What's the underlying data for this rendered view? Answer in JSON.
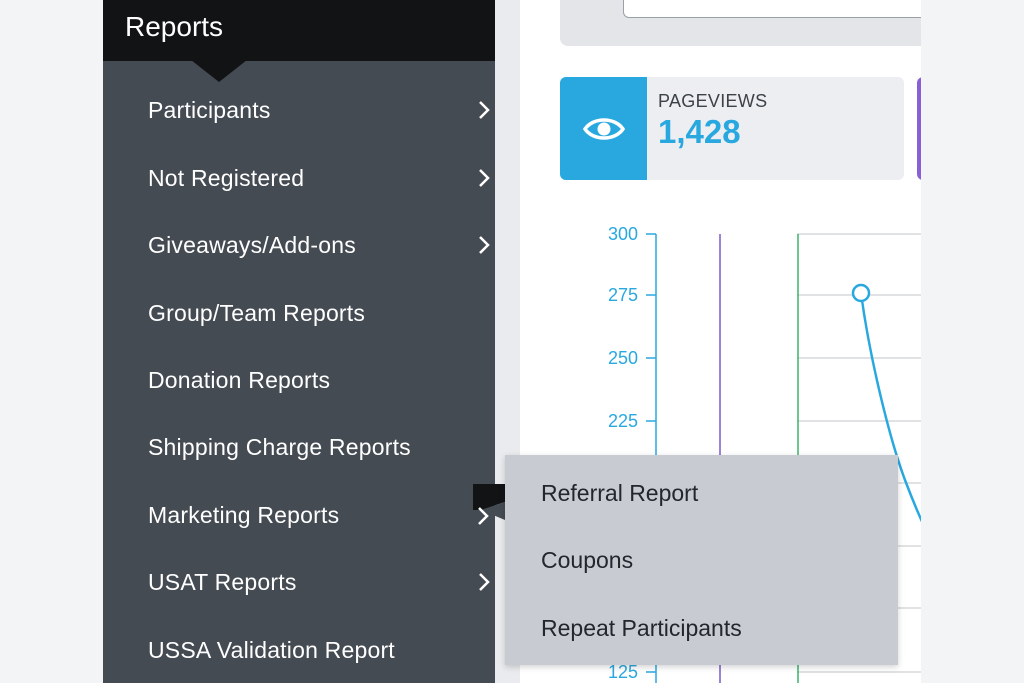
{
  "sidebar": {
    "title": "Reports",
    "items": [
      {
        "label": "Participants",
        "has_submenu": true
      },
      {
        "label": "Not Registered",
        "has_submenu": true
      },
      {
        "label": "Giveaways/Add-ons",
        "has_submenu": true
      },
      {
        "label": "Group/Team Reports",
        "has_submenu": false
      },
      {
        "label": "Donation Reports",
        "has_submenu": false
      },
      {
        "label": "Shipping Charge Reports",
        "has_submenu": false
      },
      {
        "label": "Marketing Reports",
        "has_submenu": true,
        "active": true
      },
      {
        "label": "USAT Reports",
        "has_submenu": true
      },
      {
        "label": "USSA Validation Report",
        "has_submenu": false
      }
    ]
  },
  "submenu": {
    "items": [
      {
        "label": "Referral Report"
      },
      {
        "label": "Coupons"
      },
      {
        "label": "Repeat Participants"
      }
    ]
  },
  "stats": {
    "pageviews_label": "PAGEVIEWS",
    "pageviews_value": "1,428",
    "icon": "eye-icon"
  },
  "chart_data": {
    "type": "line",
    "ytick_labels": [
      "300",
      "275",
      "250",
      "225",
      "125"
    ],
    "ylim": [
      125,
      300
    ],
    "grid": true,
    "series": [
      {
        "color": "#29a8e0",
        "values": [
          {
            "x": 0,
            "y": 276
          }
        ]
      }
    ]
  },
  "colors": {
    "sidebar_bg": "#454b53",
    "header_bg": "#111315",
    "accent_blue": "#29a8e0",
    "accent_purple": "#8a5fd6",
    "submenu_bg": "#c8cbd1"
  }
}
